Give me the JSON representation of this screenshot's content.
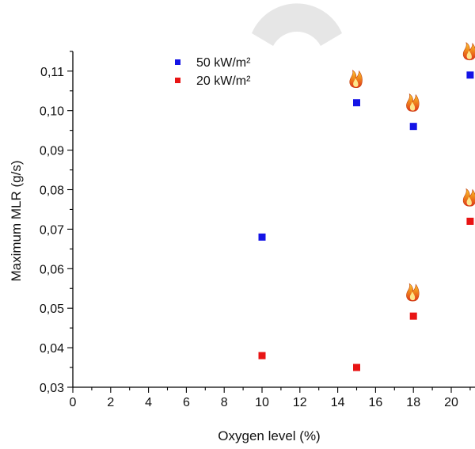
{
  "chart_data": {
    "type": "scatter",
    "title": "",
    "xlabel": "Oxygen level (%)",
    "ylabel": "Maximum MLR (g/s)",
    "xlim": [
      0,
      21.5
    ],
    "ylim": [
      0.03,
      0.115
    ],
    "x_ticks": [
      "0",
      "2",
      "4",
      "6",
      "8",
      "10",
      "12",
      "14",
      "16",
      "18",
      "20"
    ],
    "y_ticks": [
      "0,03",
      "0,04",
      "0,05",
      "0,06",
      "0,07",
      "0,08",
      "0,09",
      "0,10",
      "0,11"
    ],
    "grid": false,
    "legend_position": "top-left",
    "series": [
      {
        "name": "50 kW/m²",
        "color": "#1414e6",
        "marker": "square",
        "points": [
          {
            "x": 10,
            "y": 0.068,
            "flame": false
          },
          {
            "x": 15,
            "y": 0.102,
            "flame": true
          },
          {
            "x": 18,
            "y": 0.096,
            "flame": true
          },
          {
            "x": 21,
            "y": 0.109,
            "flame": true
          }
        ]
      },
      {
        "name": "20 kW/m²",
        "color": "#e81414",
        "marker": "square",
        "points": [
          {
            "x": 10,
            "y": 0.038,
            "flame": false
          },
          {
            "x": 15,
            "y": 0.035,
            "flame": false
          },
          {
            "x": 18,
            "y": 0.048,
            "flame": true
          },
          {
            "x": 21,
            "y": 0.072,
            "flame": true
          }
        ]
      }
    ],
    "flame_icon": "flame-icon",
    "watermark_color": "#e6e6e6"
  }
}
